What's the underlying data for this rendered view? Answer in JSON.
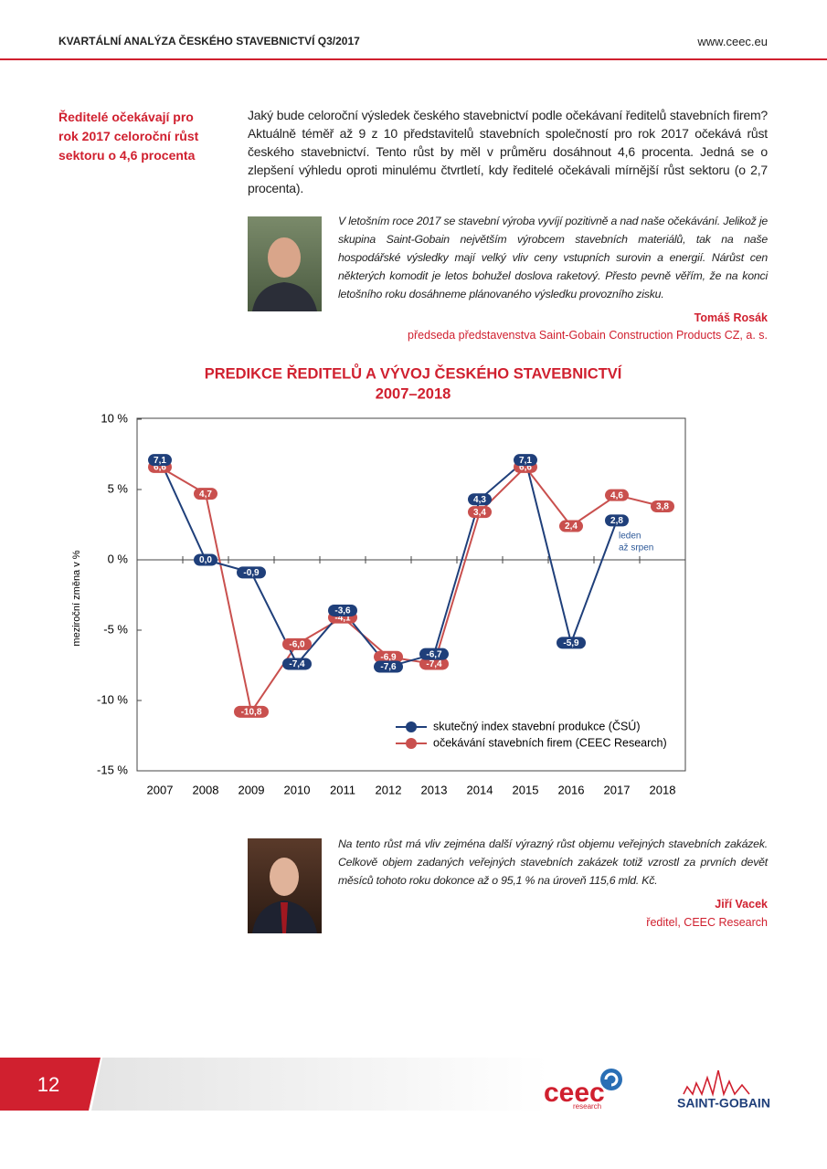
{
  "header": {
    "title": "KVARTÁLNÍ ANALÝZA ČESKÉHO STAVEBNICTVÍ Q3/2017",
    "url": "www.ceec.eu"
  },
  "sidebar": {
    "highlight": "Ředitelé očekávají pro rok 2017 celoroční růst sektoru o 4,6 procenta"
  },
  "body": {
    "paragraph": "Jaký bude celoroční výsledek českého stavebnictví podle očekávaní ředitelů stavebních firem? Aktuálně téměř až 9 z 10 představitelů stavebních společností pro rok 2017 očekává růst českého stavebnictví. Tento růst by měl v průměru dosáhnout 4,6 procenta. Jedná se o zlepšení výhledu oproti minulému čtvrtletí, kdy ředitelé očekávali mírnější růst sektoru (o 2,7 procenta)."
  },
  "quotes": [
    {
      "text": "V letošním roce 2017 se stavební výroba vyvíjí pozitivně a nad naše očekávání. Jelikož je skupina Saint-Gobain největším výrobcem stavebních materiálů, tak na naše hospodářské výsledky mají velký vliv ceny vstupních surovin a energií. Nárůst cen některých komodit je letos bohužel doslova raketový. Přesto pevně věřím, že na konci letošního roku dosáhneme plánovaného výsledku provozního zisku.",
      "author": "Tomáš Rosák",
      "role": "předseda představenstva Saint-Gobain Construction Products CZ, a. s."
    },
    {
      "text": "Na tento růst má vliv zejména další výrazný růst objemu veřejných stavebních zakázek. Celkově objem zadaných veřejných stavebních zakázek totiž vzrostl za prvních devět měsíců tohoto roku dokonce až o 95,1 % na úroveň 115,6 mld. Kč.",
      "author": "Jiří Vacek",
      "role": "ředitel, CEEC Research"
    }
  ],
  "chart_data": {
    "type": "line",
    "title": "PREDIKCE ŘEDITELŮ A VÝVOJ ČESKÉHO STAVEBNICTVÍ",
    "subtitle": "2007–2018",
    "y_label": "meziroční změna v %",
    "categories": [
      "2007",
      "2008",
      "2009",
      "2010",
      "2011",
      "2012",
      "2013",
      "2014",
      "2015",
      "2016",
      "2017",
      "2018"
    ],
    "series": [
      {
        "name": "očekávání stavebních firem (CEEC Research)",
        "color": "#c9504e",
        "values": [
          6.6,
          4.7,
          -10.8,
          -6.0,
          -4.1,
          -6.9,
          -7.4,
          3.4,
          6.6,
          2.4,
          4.6,
          3.8
        ],
        "value_labels": [
          "6,6",
          "4,7",
          "-10,8",
          "-6,0",
          "-4,1",
          "-6,9",
          "-7,4",
          "3,4",
          "6,6",
          "2,4",
          "4,6",
          "3,8"
        ]
      },
      {
        "name": "skutečný index stavební produkce (ČSÚ)",
        "color": "#1f3f7a",
        "values": [
          7.1,
          0.0,
          -0.9,
          -7.4,
          -3.6,
          -7.6,
          -6.7,
          4.3,
          7.1,
          -5.9,
          2.8,
          null
        ],
        "value_labels": [
          "7,1",
          "0,0",
          "-0,9",
          "-7,4",
          "-3,6",
          "-7,6",
          "-6,7",
          "4,3",
          "7,1",
          "-5,9",
          "2,8",
          null
        ]
      }
    ],
    "annotation": [
      "leden",
      "až srpen"
    ],
    "ylim": [
      -15,
      10
    ],
    "yticks": [
      {
        "value": 10,
        "label": "10 %"
      },
      {
        "value": 5,
        "label": "5 %"
      },
      {
        "value": 0,
        "label": "0 %"
      },
      {
        "value": -5,
        "label": "-5 %"
      },
      {
        "value": -10,
        "label": "-10 %"
      },
      {
        "value": -15,
        "label": "-15 %"
      }
    ],
    "legend": "lower right"
  },
  "footer": {
    "page_number": "12",
    "logo_ceec": "ceec",
    "logo_ceec_sub": "research",
    "logo_sg": "SAINT-GOBAIN"
  }
}
